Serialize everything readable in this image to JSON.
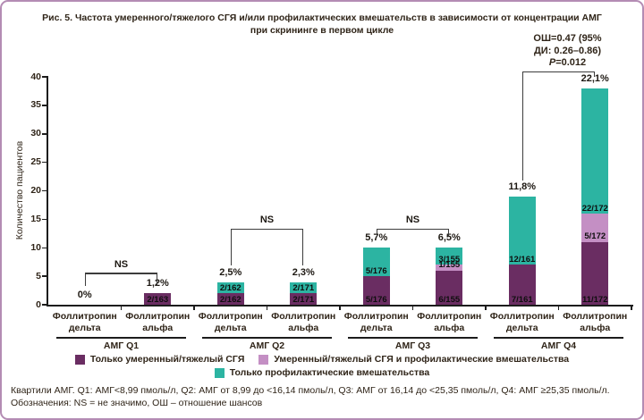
{
  "title": {
    "line1": "Рис. 5. Частота умеренного/тяжелого СГЯ и/или профилактических вмешательств в зависимости от концентрации АМГ",
    "line2": "при скрининге в первом цикле"
  },
  "annotation": {
    "line1": "ОШ=0.47  (95%",
    "line2": "ДИ: 0.26–0.86)",
    "p_italic": "P",
    "p_rest": "=0.012"
  },
  "footer": {
    "line1": "Квартили АМГ. Q1: АМГ<8,99 пмоль/л, Q2: АМГ от 8,99 до <16,14 пмоль/л, Q3: АМГ от 16,14 до <25,35 пмоль/л, Q4: АМГ ≥25,35 пмоль/л.",
    "line2": "Обозначения: NS = не значимо, ОШ – отношение шансов"
  },
  "legend": {
    "items": [
      {
        "series": "only_ohss",
        "label": "Только умеренный/тяжелый СГЯ"
      },
      {
        "series": "ohss_plus_interv",
        "label": "Умеренный/тяжелый СГЯ и профилактические вмешательства"
      },
      {
        "series": "only_interv",
        "label": "Только профилактические вмешательства"
      }
    ]
  },
  "chart_data": {
    "type": "bar",
    "stacked": true,
    "title": "Рис. 5. Частота умеренного/тяжелого СГЯ и/или профилактических вмешательств в зависимости от концентрации АМГ при скрининге в первом цикле",
    "ylabel": "Количество пациентов",
    "xlabel": "",
    "ylim": [
      0,
      40
    ],
    "yticks": [
      0,
      5,
      10,
      15,
      20,
      25,
      30,
      35,
      40
    ],
    "grid": false,
    "series_colors": {
      "only_ohss": "#6a2d62",
      "ohss_plus_interv": "#c48fc4",
      "only_interv": "#2cb4a2"
    },
    "series_names": {
      "only_ohss": "Только умеренный/тяжелый СГЯ",
      "ohss_plus_interv": "Умеренный/тяжелый СГЯ и профилактические вмешательства",
      "only_interv": "Только профилактические вмешательства"
    },
    "groups": [
      {
        "label": "АМГ Q1",
        "bars": [
          {
            "category_lines": [
              "Фоллитропин",
              "дельта"
            ],
            "pct": "0%",
            "total": 0,
            "segments": []
          },
          {
            "category_lines": [
              "Фоллитропин",
              "альфа"
            ],
            "pct": "1,2%",
            "total": 2,
            "segments": [
              {
                "series": "only_ohss",
                "value": 2,
                "label": "2/163"
              }
            ]
          }
        ]
      },
      {
        "label": "АМГ Q2",
        "bars": [
          {
            "category_lines": [
              "Фоллитропин",
              "дельта"
            ],
            "pct": "2,5%",
            "total": 4,
            "segments": [
              {
                "series": "only_ohss",
                "value": 2,
                "label": "2/162"
              },
              {
                "series": "only_interv",
                "value": 2,
                "label": "2/162"
              }
            ]
          },
          {
            "category_lines": [
              "Фоллитропин",
              "альфа"
            ],
            "pct": "2,3%",
            "total": 4,
            "segments": [
              {
                "series": "only_ohss",
                "value": 2,
                "label": "2/171"
              },
              {
                "series": "only_interv",
                "value": 2,
                "label": "2/171"
              }
            ]
          }
        ]
      },
      {
        "label": "АМГ Q3",
        "bars": [
          {
            "category_lines": [
              "Фоллитропин",
              "дельта"
            ],
            "pct": "5,7%",
            "total": 10,
            "segments": [
              {
                "series": "only_ohss",
                "value": 5,
                "label": "5/176"
              },
              {
                "series": "only_interv",
                "value": 5,
                "label": "5/176"
              }
            ]
          },
          {
            "category_lines": [
              "Фоллитропин",
              "альфа"
            ],
            "pct": "6,5%",
            "total": 10,
            "segments": [
              {
                "series": "only_ohss",
                "value": 6,
                "label": "6/155"
              },
              {
                "series": "ohss_plus_interv",
                "value": 1,
                "label": "1/155"
              },
              {
                "series": "only_interv",
                "value": 3,
                "label": "3/155"
              }
            ]
          }
        ]
      },
      {
        "label": "АМГ Q4",
        "bars": [
          {
            "category_lines": [
              "Фоллитропин",
              "дельта"
            ],
            "pct": "11,8%",
            "total": 19,
            "segments": [
              {
                "series": "only_ohss",
                "value": 7,
                "label": "7/161"
              },
              {
                "series": "only_interv",
                "value": 12,
                "label": "12/161"
              }
            ]
          },
          {
            "category_lines": [
              "Фоллитропин",
              "альфа"
            ],
            "pct": "22,1%",
            "total": 38,
            "segments": [
              {
                "series": "only_ohss",
                "value": 11,
                "label": "11/172"
              },
              {
                "series": "ohss_plus_interv",
                "value": 5,
                "label": "5/172"
              },
              {
                "series": "only_interv",
                "value": 22,
                "label": "22/172"
              }
            ]
          }
        ]
      }
    ],
    "brackets": [
      {
        "label": "NS",
        "group": 0,
        "line": 5.6,
        "left_leg_to": 3.3,
        "right_leg_to": 3.3
      },
      {
        "label": "NS",
        "group": 1,
        "line": 13.4,
        "left_leg_to": 6.9,
        "right_leg_to": 6.9
      },
      {
        "label": "NS",
        "group": 2,
        "line": 13.4,
        "left_leg_to": 11.9,
        "right_leg_to": 11.9
      },
      {
        "label": "",
        "group": 3,
        "line": 41.0,
        "left_leg_to": 21.8,
        "right_leg_to": 40.0
      }
    ]
  }
}
